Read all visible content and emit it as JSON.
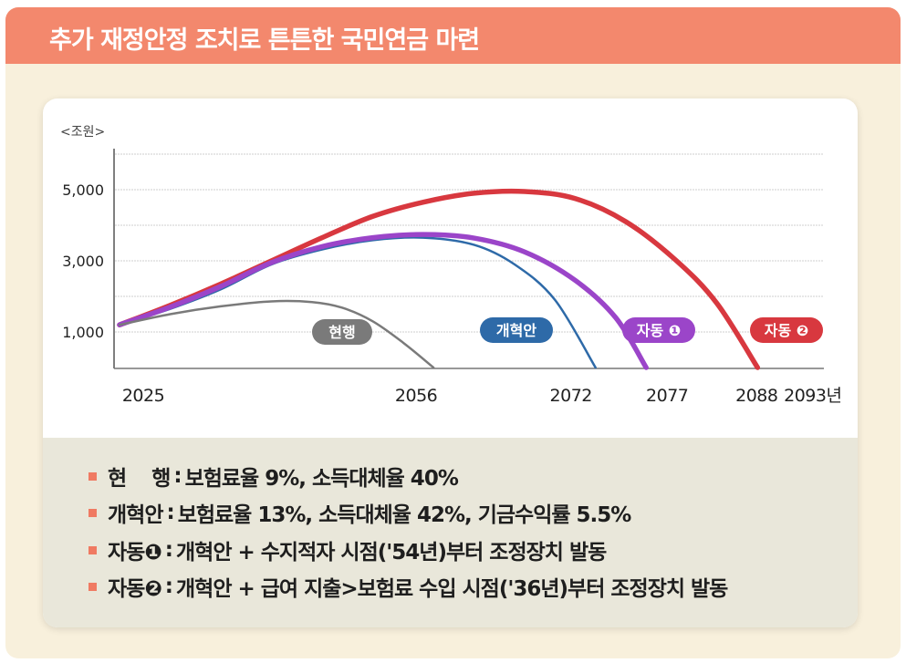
{
  "header": {
    "title": "추가 재정안정 조치로 튼튼한 국민연금 마련"
  },
  "chart_data": {
    "type": "line",
    "unit_label": "<조원>",
    "y_ticks": [
      1000,
      3000,
      5000
    ],
    "y_tick_labels": [
      "1,000",
      "3,000",
      "5,000"
    ],
    "gridlines": [
      1000,
      2000,
      3000,
      4000,
      5000,
      6000
    ],
    "ylim": [
      0,
      6000
    ],
    "xlim": [
      2025,
      2093
    ],
    "x_tick_labels": [
      "2025",
      "2056",
      "2072",
      "2077",
      "2088",
      "2093년"
    ],
    "x_tick_years": [
      2025,
      2056,
      2072,
      2077,
      2088,
      2093
    ],
    "series": [
      {
        "name": "현행",
        "color": "#7a7a7a",
        "x": [
          2025,
          2030,
          2035,
          2040,
          2044,
          2047,
          2050,
          2053,
          2056
        ],
        "y": [
          1200,
          1500,
          1720,
          1860,
          1840,
          1680,
          1300,
          700,
          0
        ]
      },
      {
        "name": "개혁안",
        "color": "#2e6aa8",
        "x": [
          2025,
          2030,
          2035,
          2040,
          2045,
          2050,
          2055,
          2060,
          2064,
          2068,
          2072
        ],
        "y": [
          1200,
          1650,
          2200,
          2900,
          3320,
          3580,
          3650,
          3450,
          2900,
          1900,
          0
        ]
      },
      {
        "name": "자동 ❶",
        "color": "#9b45c9",
        "x": [
          2025,
          2030,
          2035,
          2040,
          2045,
          2050,
          2055,
          2060,
          2065,
          2070,
          2074,
          2077
        ],
        "y": [
          1200,
          1700,
          2280,
          2950,
          3400,
          3650,
          3740,
          3640,
          3250,
          2450,
          1400,
          0
        ]
      },
      {
        "name": "자동 ❷",
        "color": "#d8383f",
        "x": [
          2025,
          2030,
          2035,
          2040,
          2045,
          2050,
          2055,
          2060,
          2065,
          2070,
          2075,
          2080,
          2084,
          2088
        ],
        "y": [
          1200,
          1750,
          2350,
          3000,
          3650,
          4250,
          4650,
          4900,
          4950,
          4750,
          4100,
          3000,
          1800,
          0
        ]
      }
    ]
  },
  "legend": [
    {
      "label": "현    행",
      "sep": ":",
      "desc": "보험료율 9%, 소득대체율 40%"
    },
    {
      "label": "개혁안",
      "sep": ":",
      "desc": "보험료율 13%, 소득대체율 42%, 기금수익률 5.5%"
    },
    {
      "label": "자동❶",
      "sep": ":",
      "desc": "개혁안 + 수지적자 시점('54년)부터 조정장치 발동"
    },
    {
      "label": "자동❷",
      "sep": ":",
      "desc": "개혁안 + 급여 지출>보험료 수입 시점('36년)부터 조정장치 발동"
    }
  ]
}
